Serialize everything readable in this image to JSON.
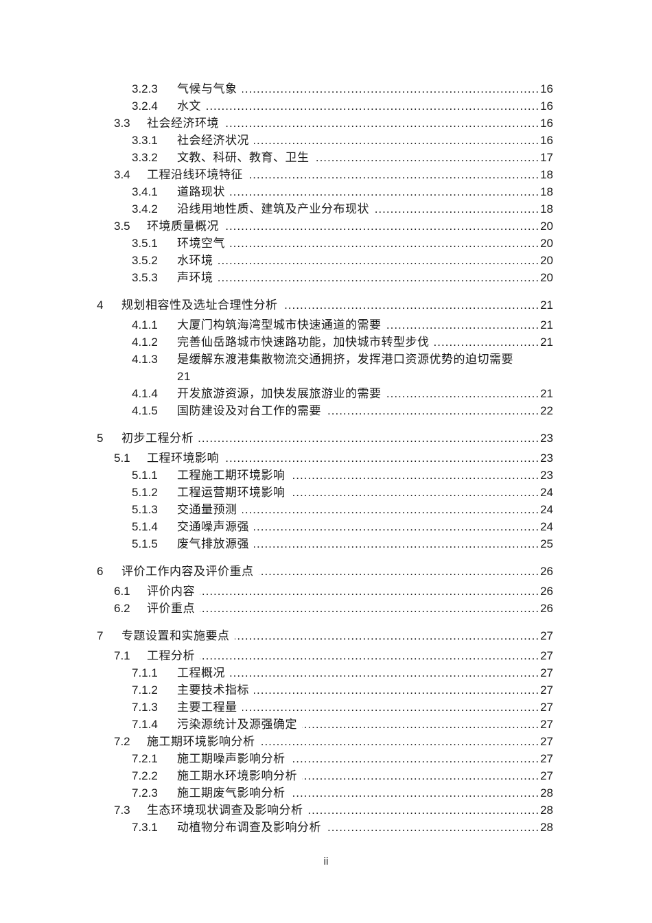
{
  "document": {
    "footer_page_label": "ii",
    "toc": {
      "entries": [
        {
          "num": "3.2.3",
          "title": "气候与气象",
          "page": "16",
          "level": 3
        },
        {
          "num": "3.2.4",
          "title": "水文",
          "page": "16",
          "level": 3
        },
        {
          "num": "3.3",
          "title": "社会经济环境",
          "page": "16",
          "level": 2
        },
        {
          "num": "3.3.1",
          "title": "社会经济状况",
          "page": "16",
          "level": 3
        },
        {
          "num": "3.3.2",
          "title": "文教、科研、教育、卫生",
          "page": "17",
          "level": 3
        },
        {
          "num": "3.4",
          "title": "工程沿线环境特征",
          "page": "18",
          "level": 2
        },
        {
          "num": "3.4.1",
          "title": "道路现状",
          "page": "18",
          "level": 3
        },
        {
          "num": "3.4.2",
          "title": "沿线用地性质、建筑及产业分布现状",
          "page": "18",
          "level": 3
        },
        {
          "num": "3.5",
          "title": "环境质量概况",
          "page": "20",
          "level": 2
        },
        {
          "num": "3.5.1",
          "title": "环境空气",
          "page": "20",
          "level": 3
        },
        {
          "num": "3.5.2",
          "title": "水环境",
          "page": "20",
          "level": 3
        },
        {
          "num": "3.5.3",
          "title": "声环境",
          "page": "20",
          "level": 3
        },
        {
          "num": "4",
          "title": "规划相容性及选址合理性分析",
          "page": "21",
          "level": 1
        },
        {
          "num": "4.1.1",
          "title": "大厦门构筑海湾型城市快速通道的需要",
          "page": "21",
          "level": 3
        },
        {
          "num": "4.1.2",
          "title": "完善仙岳路城市快速路功能，加快城市转型步伐",
          "page": "21",
          "level": 3
        },
        {
          "num": "4.1.3",
          "title": "是缓解东渡港集散物流交通拥挤，发挥港口资源优势的迫切需要",
          "page": "21",
          "level": 3,
          "wrapped": true
        },
        {
          "num": "4.1.4",
          "title": "开发旅游资源，加快发展旅游业的需要",
          "page": "21",
          "level": 3
        },
        {
          "num": "4.1.5",
          "title": "国防建设及对台工作的需要",
          "page": "22",
          "level": 3
        },
        {
          "num": "5",
          "title": "初步工程分析",
          "page": "23",
          "level": 1
        },
        {
          "num": "5.1",
          "title": "工程环境影响",
          "page": "23",
          "level": 2
        },
        {
          "num": "5.1.1",
          "title": "工程施工期环境影响",
          "page": "23",
          "level": 3
        },
        {
          "num": "5.1.2",
          "title": "工程运营期环境影响",
          "page": "24",
          "level": 3
        },
        {
          "num": "5.1.3",
          "title": "交通量预测",
          "page": "24",
          "level": 3
        },
        {
          "num": "5.1.4",
          "title": "交通噪声源强",
          "page": "24",
          "level": 3
        },
        {
          "num": "5.1.5",
          "title": "废气排放源强",
          "page": "25",
          "level": 3
        },
        {
          "num": "6",
          "title": "评价工作内容及评价重点",
          "page": "26",
          "level": 1
        },
        {
          "num": "6.1",
          "title": "评价内容",
          "page": "26",
          "level": 2
        },
        {
          "num": "6.2",
          "title": "评价重点",
          "page": "26",
          "level": 2
        },
        {
          "num": "7",
          "title": "专题设置和实施要点",
          "page": "27",
          "level": 1
        },
        {
          "num": "7.1",
          "title": "工程分析",
          "page": "27",
          "level": 2
        },
        {
          "num": "7.1.1",
          "title": "工程概况",
          "page": "27",
          "level": 3
        },
        {
          "num": "7.1.2",
          "title": "主要技术指标",
          "page": "27",
          "level": 3
        },
        {
          "num": "7.1.3",
          "title": "主要工程量",
          "page": "27",
          "level": 3
        },
        {
          "num": "7.1.4",
          "title": "污染源统计及源强确定",
          "page": "27",
          "level": 3
        },
        {
          "num": "7.2",
          "title": "施工期环境影响分析",
          "page": "27",
          "level": 2
        },
        {
          "num": "7.2.1",
          "title": "施工期噪声影响分析",
          "page": "27",
          "level": 3
        },
        {
          "num": "7.2.2",
          "title": "施工期水环境影响分析",
          "page": "27",
          "level": 3
        },
        {
          "num": "7.2.3",
          "title": "施工期废气影响分析",
          "page": "28",
          "level": 3
        },
        {
          "num": "7.3",
          "title": "生态环境现状调查及影响分析",
          "page": "28",
          "level": 2
        },
        {
          "num": "7.3.1",
          "title": "动植物分布调查及影响分析",
          "page": "28",
          "level": 3
        }
      ]
    }
  }
}
